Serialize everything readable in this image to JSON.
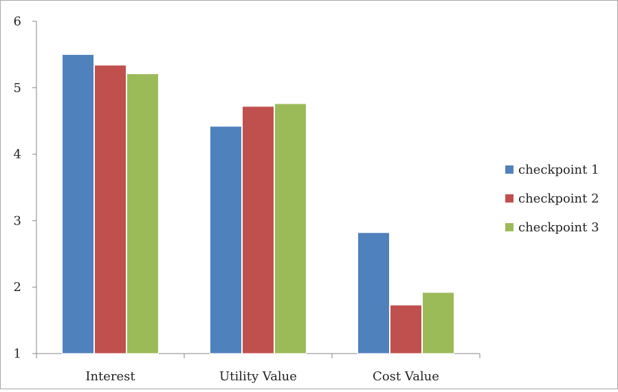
{
  "chart_data": {
    "type": "bar",
    "categories": [
      "Interest",
      "Utility Value",
      "Cost Value"
    ],
    "series": [
      {
        "name": "checkpoint 1",
        "color": "#4f81bd",
        "values": [
          5.5,
          4.42,
          2.82
        ]
      },
      {
        "name": "checkpoint 2",
        "color": "#c0504d",
        "values": [
          5.34,
          4.72,
          1.73
        ]
      },
      {
        "name": "checkpoint 3",
        "color": "#9bbb59",
        "values": [
          5.21,
          4.76,
          1.92
        ]
      }
    ],
    "ylim": [
      1,
      6
    ],
    "yticks": [
      "1",
      "2",
      "3",
      "4",
      "5",
      "6"
    ],
    "grid": false,
    "legend_position": "right"
  }
}
